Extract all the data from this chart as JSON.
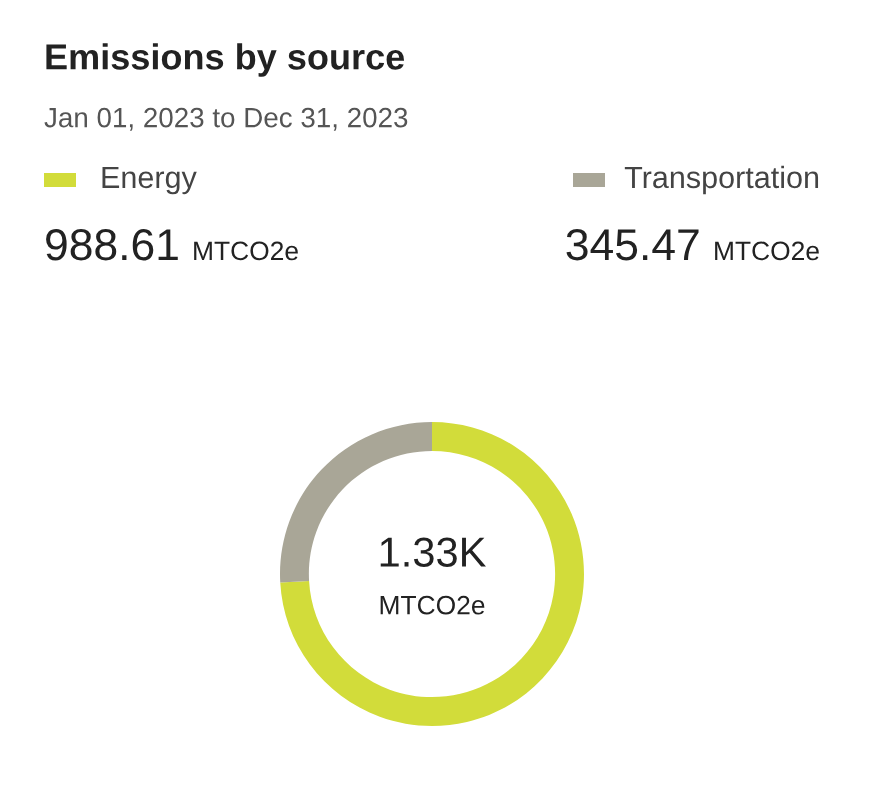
{
  "chart_data": {
    "type": "donut",
    "title": "Emissions by source",
    "subtitle": "Jan 01, 2023 to Dec 31, 2023",
    "categories": [
      "Energy",
      "Transportation"
    ],
    "values": [
      988.61,
      345.47
    ],
    "colors": [
      "#d2dc3a",
      "#a9a697"
    ],
    "value_labels": [
      "988.61 MTCO2e",
      "345.47 MTCO2e"
    ],
    "legend": "top",
    "annotations": [
      "1.33K",
      "MTCO2e"
    ]
  }
}
